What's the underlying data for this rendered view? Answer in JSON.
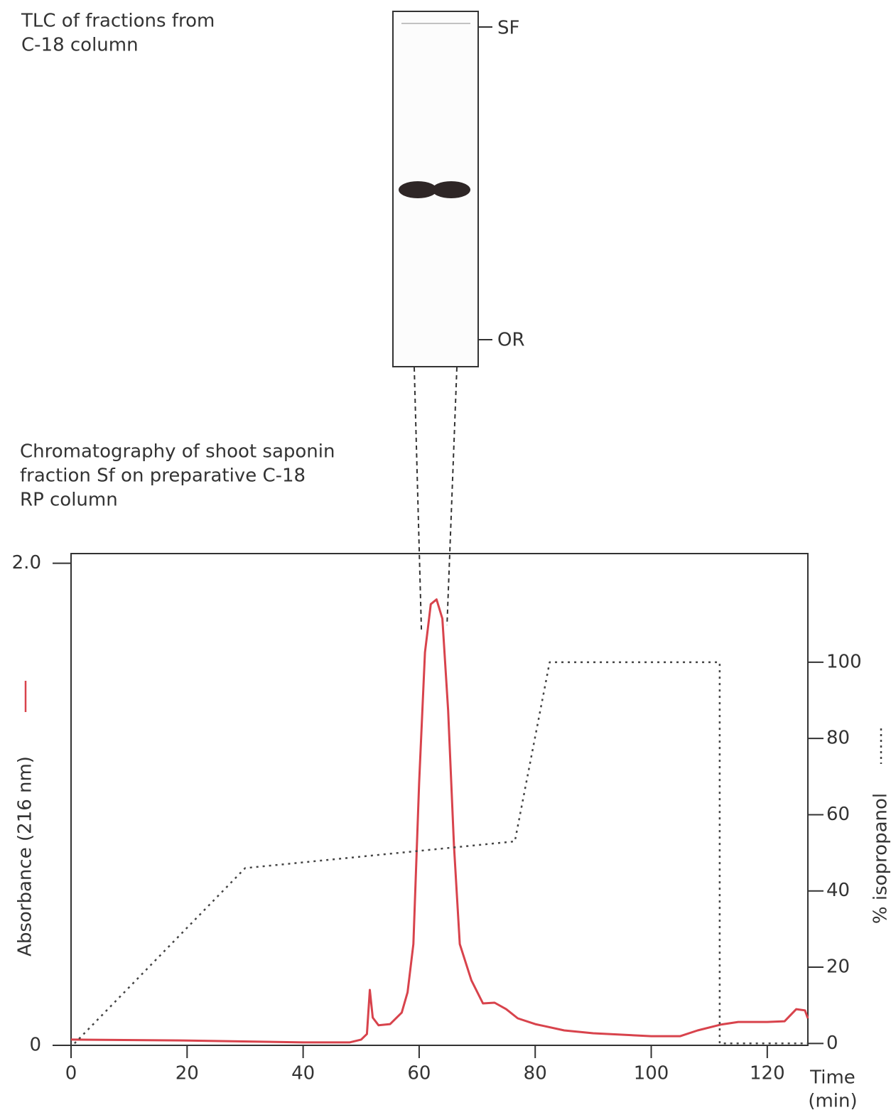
{
  "chart_data": {
    "type": "line",
    "title": [
      "Chromatography of shoot saponin",
      "fraction Sf on preparative C-18",
      "RP column"
    ],
    "xlabel": [
      "Time",
      "(min)"
    ],
    "ylabel": "Absorbance (216 nm)",
    "y2label": "% isopropanol",
    "xlim": [
      0,
      127
    ],
    "xticks": [
      0,
      20,
      40,
      60,
      80,
      100,
      120
    ],
    "ylim": [
      0,
      2.04
    ],
    "yticks": [
      0,
      {
        "value": 2,
        "label": "2.0"
      }
    ],
    "y2lim": [
      -0.5,
      128.5
    ],
    "y2ticks": [
      0,
      20,
      40,
      60,
      80,
      100
    ],
    "series": [
      {
        "color": "#d8434c",
        "style": "solid",
        "x": [
          0,
          20,
          40,
          48,
          50,
          51,
          51.5,
          52,
          53,
          55,
          57,
          58,
          59,
          60,
          61,
          62,
          63,
          64,
          65,
          66,
          67,
          69,
          71,
          73,
          75,
          77,
          80,
          85,
          90,
          100,
          105,
          108,
          112,
          115,
          120,
          123,
          125,
          126.5,
          127
        ],
        "values": [
          0.024,
          0.02,
          0.012,
          0.012,
          0.024,
          0.047,
          0.23,
          0.115,
          0.083,
          0.088,
          0.136,
          0.22,
          0.42,
          1.09,
          1.63,
          1.83,
          1.85,
          1.77,
          1.39,
          0.83,
          0.42,
          0.27,
          0.174,
          0.177,
          0.15,
          0.112,
          0.088,
          0.062,
          0.05,
          0.038,
          0.038,
          0.062,
          0.086,
          0.097,
          0.097,
          0.1,
          0.15,
          0.145,
          0.112
        ]
      },
      {
        "color": "#444444",
        "style": "dotted",
        "axis": "y2",
        "x": [
          0.6,
          30,
          76.5,
          82.5,
          111.8,
          111.8,
          127
        ],
        "values": [
          0,
          46,
          53,
          100,
          100,
          0,
          0
        ]
      }
    ],
    "collected_fraction": [
      60.4,
      64.8
    ],
    "inset": {
      "title": [
        "TLC of fractions from",
        "C-18 column"
      ],
      "front_label": "SF",
      "origin_label": "OR"
    }
  }
}
